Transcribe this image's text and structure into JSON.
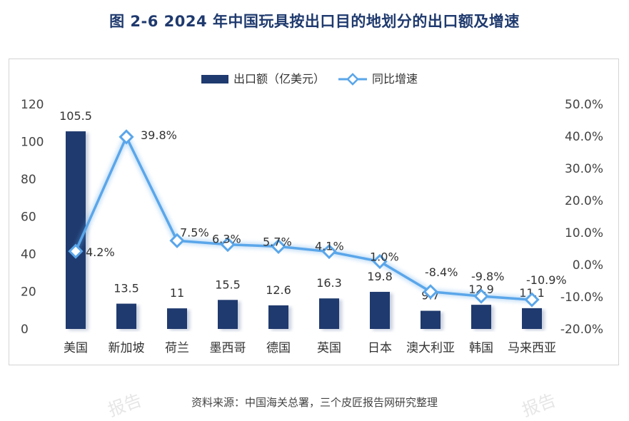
{
  "figure": {
    "title": "图  2-6 2024 年中国玩具按出口目的地划分的出口额及增速",
    "source": "资料来源：中国海关总署，三个皮匠报告网研究整理",
    "watermark": "报告"
  },
  "chart_data": {
    "type": "bar+line",
    "categories": [
      "美国",
      "新加坡",
      "荷兰",
      "墨西哥",
      "德国",
      "英国",
      "日本",
      "澳大利亚",
      "韩国",
      "马来西亚"
    ],
    "series": [
      {
        "name": "出口额（亿美元）",
        "type": "bar",
        "axis": "left",
        "values": [
          105.5,
          13.5,
          11,
          15.5,
          12.6,
          16.3,
          19.8,
          9.7,
          12.9,
          11.1
        ],
        "labels": [
          "105.5",
          "13.5",
          "11",
          "15.5",
          "12.6",
          "16.3",
          "19.8",
          "9.7",
          "12.9",
          "11.1"
        ],
        "color": "#1f3a6e"
      },
      {
        "name": "同比增速",
        "type": "line",
        "axis": "right",
        "values": [
          4.2,
          39.8,
          7.5,
          6.3,
          5.7,
          4.1,
          1.0,
          -8.4,
          -9.8,
          -10.9
        ],
        "labels": [
          "4.2%",
          "39.8%",
          "7.5%",
          "6.3%",
          "5.7%",
          "4.1%",
          "1.0%",
          "-8.4%",
          "-9.8%",
          "-10.9%"
        ],
        "color": "#5aa6ea"
      }
    ],
    "y_left": {
      "min": 0,
      "max": 120,
      "ticks": [
        "0",
        "20",
        "40",
        "60",
        "80",
        "100",
        "120"
      ]
    },
    "y_right": {
      "min": -20,
      "max": 50,
      "ticks": [
        "-20.0%",
        "-10.0%",
        "0.0%",
        "10.0%",
        "20.0%",
        "30.0%",
        "40.0%",
        "50.0%"
      ]
    },
    "legend_position": "top-center",
    "grid": false
  }
}
